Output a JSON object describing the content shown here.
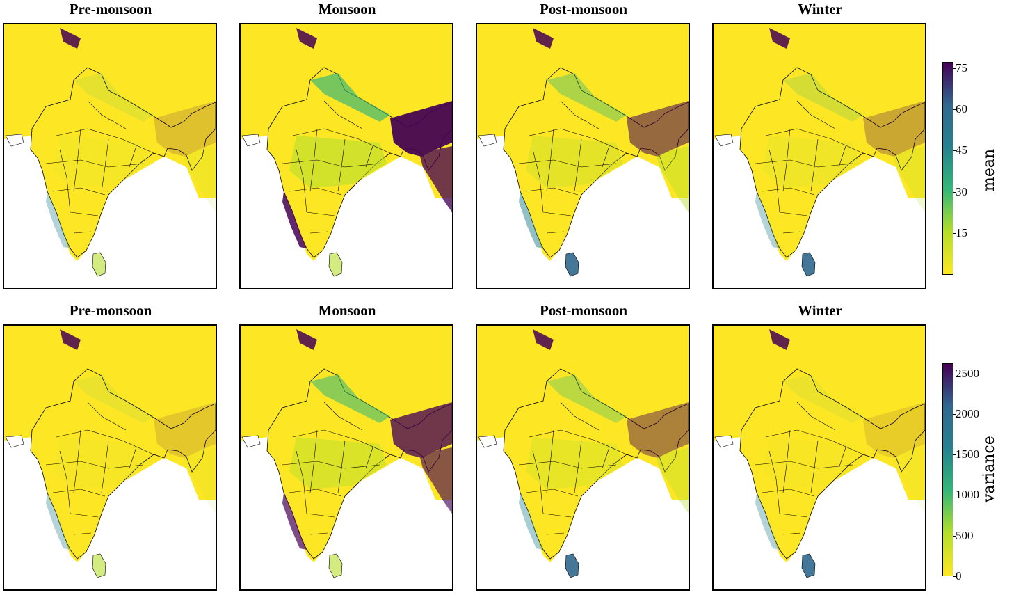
{
  "figure": {
    "rows": [
      {
        "panels": [
          {
            "title": "Pre-monsoon",
            "intensity": 0.15
          },
          {
            "title": "Monsoon",
            "intensity": 0.85
          },
          {
            "title": "Post-monsoon",
            "intensity": 0.5
          },
          {
            "title": "Winter",
            "intensity": 0.25
          }
        ],
        "colorbar": {
          "label": "mean",
          "ticks": [
            "75",
            "60",
            "45",
            "30",
            "15"
          ],
          "range": [
            0,
            78
          ]
        }
      },
      {
        "panels": [
          {
            "title": "Pre-monsoon",
            "intensity": 0.12
          },
          {
            "title": "Monsoon",
            "intensity": 0.7
          },
          {
            "title": "Post-monsoon",
            "intensity": 0.4
          },
          {
            "title": "Winter",
            "intensity": 0.1
          }
        ],
        "colorbar": {
          "label": "variance",
          "ticks": [
            "2500",
            "2000",
            "1500",
            "1000",
            "500",
            "0"
          ],
          "range": [
            0,
            2600
          ]
        }
      }
    ],
    "colormap": "viridis_r",
    "colors": {
      "low": "#fde725",
      "mid_low": "#b5de2b",
      "mid": "#35b779",
      "mid_high": "#26828e",
      "high": "#31688e",
      "max": "#440154"
    }
  }
}
